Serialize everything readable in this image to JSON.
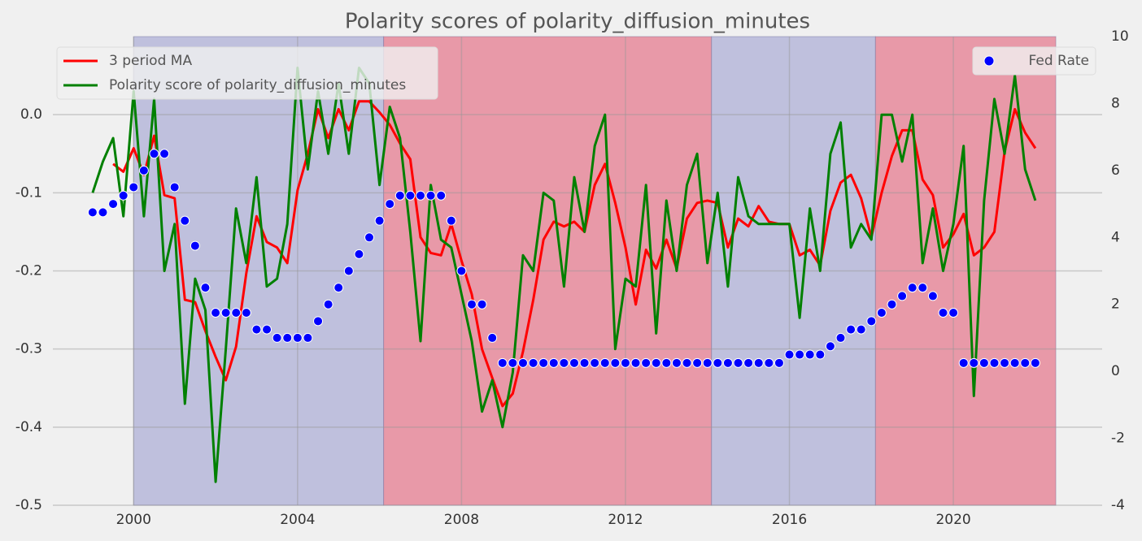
{
  "chart_data": {
    "type": "line",
    "title": "Polarity scores of polarity_diffusion_minutes",
    "x": [
      1999.0,
      1999.25,
      1999.5,
      1999.75,
      2000.0,
      2000.25,
      2000.5,
      2000.75,
      2001.0,
      2001.25,
      2001.5,
      2001.75,
      2002.0,
      2002.25,
      2002.5,
      2002.75,
      2003.0,
      2003.25,
      2003.5,
      2003.75,
      2004.0,
      2004.25,
      2004.5,
      2004.75,
      2005.0,
      2005.25,
      2005.5,
      2005.75,
      2006.0,
      2006.25,
      2006.5,
      2006.75,
      2007.0,
      2007.25,
      2007.5,
      2007.75,
      2008.0,
      2008.25,
      2008.5,
      2008.75,
      2009.0,
      2009.25,
      2009.5,
      2009.75,
      2010.0,
      2010.25,
      2010.5,
      2010.75,
      2011.0,
      2011.25,
      2011.5,
      2011.75,
      2012.0,
      2012.25,
      2012.5,
      2012.75,
      2013.0,
      2013.25,
      2013.5,
      2013.75,
      2014.0,
      2014.25,
      2014.5,
      2014.75,
      2015.0,
      2015.25,
      2015.5,
      2015.75,
      2016.0,
      2016.25,
      2016.5,
      2016.75,
      2017.0,
      2017.25,
      2017.5,
      2017.75,
      2018.0,
      2018.25,
      2018.5,
      2018.75,
      2019.0,
      2019.25,
      2019.5,
      2019.75,
      2020.0,
      2020.25,
      2020.5,
      2020.75,
      2021.0,
      2021.25,
      2021.5,
      2021.75,
      2022.0
    ],
    "series": [
      {
        "name": "3 period MA",
        "color": "#ff0000",
        "values": [
          null,
          null,
          -0.063,
          -0.073,
          -0.043,
          -0.077,
          -0.027,
          -0.103,
          -0.107,
          -0.237,
          -0.24,
          -0.277,
          -0.31,
          -0.34,
          -0.297,
          -0.203,
          -0.13,
          -0.163,
          -0.17,
          -0.19,
          -0.097,
          -0.05,
          0.007,
          -0.03,
          0.007,
          -0.02,
          0.017,
          0.017,
          0.003,
          -0.013,
          -0.037,
          -0.057,
          -0.157,
          -0.177,
          -0.18,
          -0.14,
          -0.187,
          -0.23,
          -0.3,
          -0.337,
          -0.373,
          -0.357,
          -0.303,
          -0.237,
          -0.16,
          -0.137,
          -0.143,
          -0.137,
          -0.15,
          -0.09,
          -0.063,
          -0.113,
          -0.17,
          -0.243,
          -0.173,
          -0.197,
          -0.16,
          -0.197,
          -0.133,
          -0.113,
          -0.11,
          -0.113,
          -0.17,
          -0.133,
          -0.143,
          -0.117,
          -0.137,
          -0.14,
          -0.14,
          -0.18,
          -0.173,
          -0.193,
          -0.123,
          -0.087,
          -0.077,
          -0.107,
          -0.157,
          -0.1,
          -0.053,
          -0.02,
          -0.02,
          -0.083,
          -0.103,
          -0.17,
          -0.153,
          -0.127,
          -0.18,
          -0.17,
          -0.15,
          -0.047,
          0.007,
          -0.023,
          -0.043
        ]
      },
      {
        "name": "Polarity score of polarity_diffusion_minutes",
        "color": "#008000",
        "values": [
          -0.1,
          -0.06,
          -0.03,
          -0.13,
          0.03,
          -0.13,
          0.02,
          -0.2,
          -0.14,
          -0.37,
          -0.21,
          -0.25,
          -0.47,
          -0.3,
          -0.12,
          -0.19,
          -0.08,
          -0.22,
          -0.21,
          -0.14,
          0.06,
          -0.07,
          0.03,
          -0.05,
          0.04,
          -0.05,
          0.06,
          0.04,
          -0.09,
          0.01,
          -0.03,
          -0.15,
          -0.29,
          -0.09,
          -0.16,
          -0.17,
          -0.23,
          -0.29,
          -0.38,
          -0.34,
          -0.4,
          -0.33,
          -0.18,
          -0.2,
          -0.1,
          -0.11,
          -0.22,
          -0.08,
          -0.15,
          -0.04,
          0.0,
          -0.3,
          -0.21,
          -0.22,
          -0.09,
          -0.28,
          -0.11,
          -0.2,
          -0.09,
          -0.05,
          -0.19,
          -0.1,
          -0.22,
          -0.08,
          -0.13,
          -0.14,
          -0.14,
          -0.14,
          -0.14,
          -0.26,
          -0.12,
          -0.2,
          -0.05,
          -0.01,
          -0.17,
          -0.14,
          -0.16,
          0.0,
          0.0,
          -0.06,
          0.0,
          -0.19,
          -0.12,
          -0.2,
          -0.14,
          -0.04,
          -0.36,
          -0.11,
          0.02,
          -0.05,
          0.05,
          -0.07,
          -0.11
        ]
      },
      {
        "name": "Fed Rate",
        "color": "#0000ff",
        "axis": "y2",
        "values": [
          4.75,
          4.75,
          5.0,
          5.25,
          5.5,
          6.0,
          6.5,
          6.5,
          5.5,
          4.5,
          3.75,
          2.5,
          1.75,
          1.75,
          1.75,
          1.75,
          1.25,
          1.25,
          1.0,
          1.0,
          1.0,
          1.0,
          1.5,
          2.0,
          2.5,
          3.0,
          3.5,
          4.0,
          4.5,
          5.0,
          5.25,
          5.25,
          5.25,
          5.25,
          5.25,
          4.5,
          3.0,
          2.0,
          2.0,
          1.0,
          0.25,
          0.25,
          0.25,
          0.25,
          0.25,
          0.25,
          0.25,
          0.25,
          0.25,
          0.25,
          0.25,
          0.25,
          0.25,
          0.25,
          0.25,
          0.25,
          0.25,
          0.25,
          0.25,
          0.25,
          0.25,
          0.25,
          0.25,
          0.25,
          0.25,
          0.25,
          0.25,
          0.25,
          0.5,
          0.5,
          0.5,
          0.5,
          0.75,
          1.0,
          1.25,
          1.25,
          1.5,
          1.75,
          2.0,
          2.25,
          2.5,
          2.5,
          2.25,
          1.75,
          1.75,
          0.25,
          0.25,
          0.25,
          0.25,
          0.25,
          0.25,
          0.25,
          0.25
        ]
      }
    ],
    "spans": [
      {
        "start": 2000.0,
        "end": 2006.1,
        "color": "#bfc0dd"
      },
      {
        "start": 2006.1,
        "end": 2014.1,
        "color": "#e899a8"
      },
      {
        "start": 2014.1,
        "end": 2018.1,
        "color": "#bfc0dd"
      },
      {
        "start": 2018.1,
        "end": 2022.5,
        "color": "#e899a8"
      }
    ],
    "xlim": [
      1998.03,
      2023.63
    ],
    "xticks": [
      2000,
      2004,
      2008,
      2012,
      2016,
      2020
    ],
    "ylim": [
      -0.5,
      0.1
    ],
    "yticks": [
      -0.5,
      -0.4,
      -0.3,
      -0.2,
      -0.1,
      {
        "value": 0,
        "label": "0.0"
      }
    ],
    "y2lim": [
      -4,
      10
    ],
    "y2ticks": [
      -4,
      -2,
      0,
      2,
      4,
      6,
      8,
      10
    ],
    "grid": true
  }
}
